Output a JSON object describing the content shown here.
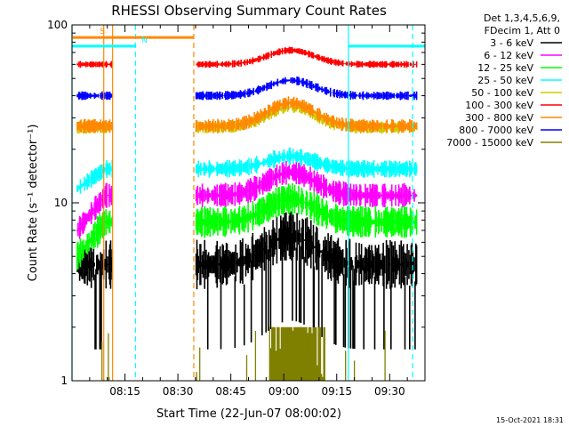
{
  "chart_data": {
    "type": "line",
    "title": "RHESSI Observing Summary Count Rates",
    "xlabel": "Start Time (22-Jun-07 08:00:02)",
    "ylabel": "Count Rate (s⁻¹ detector⁻¹)",
    "yscale": "log",
    "xlim": [
      0,
      100
    ],
    "ylim": [
      1,
      100
    ],
    "x_unit": "minutes after 08:00:02",
    "x_ticks": [
      {
        "label": "08:15",
        "value": 15
      },
      {
        "label": "08:30",
        "value": 30
      },
      {
        "label": "08:45",
        "value": 45
      },
      {
        "label": "09:00",
        "value": 60
      },
      {
        "label": "09:15",
        "value": 75
      },
      {
        "label": "09:30",
        "value": 90
      }
    ],
    "y_ticks": [
      {
        "label": "1",
        "value": 1
      },
      {
        "label": "10",
        "value": 10
      },
      {
        "label": "100",
        "value": 100
      }
    ],
    "legend_header": [
      "Det 1,3,4,5,6,9,",
      "FDecim 1, Att 0"
    ],
    "legend_position": "top-right, outside plot",
    "series": [
      {
        "name": "3 - 6 keV",
        "color": "#000000",
        "base": 4.5,
        "bump": 0.45,
        "noise": 0.14,
        "dropout": 3.0,
        "start": 1.5,
        "rise": 0,
        "rise_from": 3.5
      },
      {
        "name": "6 - 12 keV",
        "color": "#ff00ff",
        "base": 11.0,
        "bump": 0.35,
        "noise": 0.07,
        "dropout": 0,
        "start": 1.5,
        "rise": 9.5,
        "rise_from": 7.0
      },
      {
        "name": "12 - 25 keV",
        "color": "#00ff00",
        "base": 7.8,
        "bump": 0.35,
        "noise": 0.09,
        "dropout": 0,
        "start": 1.5,
        "rise": 9.5,
        "rise_from": 5.0
      },
      {
        "name": "25 - 50 keV",
        "color": "#00ffff",
        "base": 15.5,
        "bump": 0.18,
        "noise": 0.05,
        "dropout": 0,
        "start": 1.5,
        "rise": 9.5,
        "rise_from": 12.0
      },
      {
        "name": "50 - 100 keV",
        "color": "#cccc00",
        "base": 26.5,
        "bump": 0.3,
        "noise": 0.035,
        "dropout": 0,
        "start": 1.5,
        "rise": 0,
        "rise_from": 26.5
      },
      {
        "name": "100 - 300 keV",
        "color": "#ff0000",
        "base": 60.0,
        "bump": 0.2,
        "noise": 0.02,
        "dropout": 0,
        "start": 1.5,
        "rise": 0,
        "rise_from": 60.0
      },
      {
        "name": "300 - 800 keV",
        "color": "#ff8800",
        "base": 27.0,
        "bump": 0.35,
        "noise": 0.04,
        "dropout": 0,
        "start": 1.5,
        "rise": 0,
        "rise_from": 27.0
      },
      {
        "name": "800 - 7000 keV",
        "color": "#0000ff",
        "base": 40.0,
        "bump": 0.22,
        "noise": 0.025,
        "dropout": 0,
        "start": 1.5,
        "rise": 0,
        "rise_from": 40.0
      },
      {
        "name": "7000 - 15000 keV",
        "color": "#808000",
        "base": 1.0,
        "bump": 0,
        "noise": 0,
        "dropout": 0,
        "start": 1.5,
        "rise": 0,
        "rise_from": 1.0
      }
    ],
    "gaps": [
      {
        "from": 11.5,
        "to": 35.0
      }
    ],
    "bump_center": 62,
    "bump_width": 9,
    "high_energy_spikes": {
      "series": "7000 - 15000 keV",
      "peak_value": 2.0,
      "dense_from": 56,
      "dense_to": 72,
      "sparse_times": [
        8.5,
        9.0,
        10.3,
        10.5,
        35.3,
        36.2,
        49.5,
        52.0,
        77.5,
        80.0,
        88.7
      ]
    },
    "flag_bars": [
      {
        "label": "S",
        "color": "#ff8800",
        "from": 0.2,
        "to": 34.5,
        "value": 85,
        "label_at": 8.6
      },
      {
        "label": "N",
        "color": "#00ffff",
        "from": 0,
        "to": 18.0,
        "value": 76,
        "label_at": 20.5
      },
      {
        "label": "",
        "color": "#00ffff",
        "from": 78.3,
        "to": 100,
        "value": 76,
        "label_at": 0
      }
    ],
    "vertical_markers": [
      {
        "value": 0,
        "color": "#00ffff",
        "style": "solid"
      },
      {
        "value": 9.0,
        "color": "#ff8800",
        "style": "solid"
      },
      {
        "value": 11.5,
        "color": "#ff8800",
        "style": "solid"
      },
      {
        "value": 18.0,
        "color": "#00ffff",
        "style": "dashed"
      },
      {
        "value": 34.5,
        "color": "#ff8800",
        "style": "dashed"
      },
      {
        "value": 78.3,
        "color": "#00ffff",
        "style": "solid"
      },
      {
        "value": 96.5,
        "color": "#00ffff",
        "style": "dashed"
      }
    ],
    "timestamp": "15-Oct-2021 18:31"
  }
}
